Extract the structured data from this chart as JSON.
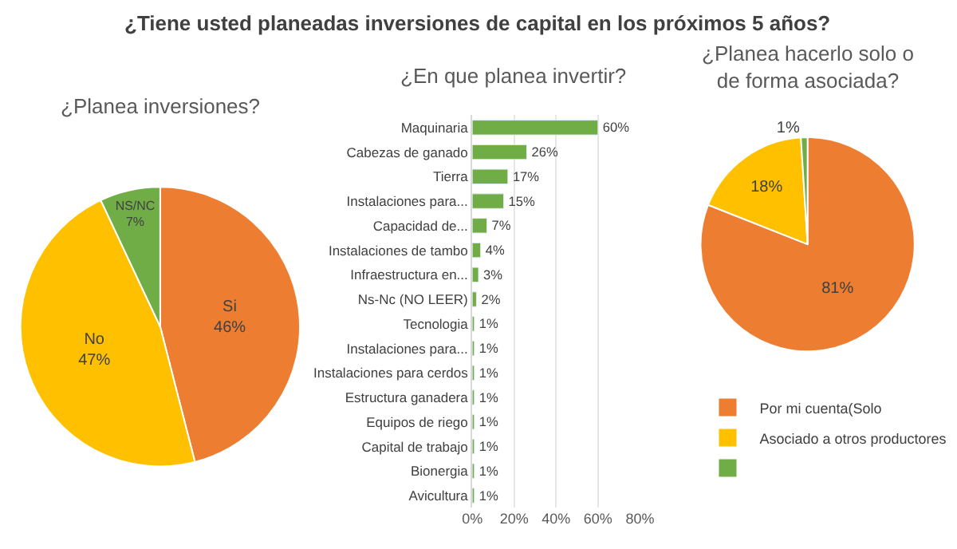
{
  "chart_data": [
    {
      "type": "pie",
      "title": "¿Tiene usted planeadas inversiones de capital en los próximos 5 años?",
      "subtitle": "¿Planea inversiones?",
      "categories": [
        "Si",
        "No",
        "NS/NC"
      ],
      "values": [
        46,
        47,
        7
      ],
      "value_labels": [
        "46%",
        "47%",
        "7%"
      ],
      "colors": [
        "#ed7d31",
        "#ffc000",
        "#70ad47"
      ],
      "legend": false
    },
    {
      "type": "bar",
      "orientation": "horizontal",
      "title": "¿En que planea invertir?",
      "categories": [
        "Maquinaria",
        "Cabezas de ganado",
        "Tierra",
        "Instalaciones para...",
        "Capacidad de...",
        "Instalaciones de tambo",
        "Infraestructura en...",
        "Ns-Nc (NO LEER)",
        "Tecnologia",
        "Instalaciones para...",
        "Instalaciones para cerdos",
        "Estructura ganadera",
        "Equipos de riego",
        "Capital de trabajo",
        "Bionergia",
        "Avicultura"
      ],
      "values": [
        60,
        26,
        17,
        15,
        7,
        4,
        3,
        2,
        1,
        1,
        1,
        1,
        1,
        1,
        1,
        1
      ],
      "value_labels": [
        "60%",
        "26%",
        "17%",
        "15%",
        "7%",
        "4%",
        "3%",
        "2%",
        "1%",
        "1%",
        "1%",
        "1%",
        "1%",
        "1%",
        "1%",
        "1%"
      ],
      "color": "#70ad47",
      "xlim": [
        0,
        80
      ],
      "xticks": [
        {
          "value": 0,
          "label": "0%"
        },
        {
          "value": 20,
          "label": "20%"
        },
        {
          "value": 40,
          "label": "40%"
        },
        {
          "value": 60,
          "label": "60%"
        },
        {
          "value": 80,
          "label": "80%"
        }
      ],
      "grid": "x",
      "legend": false
    },
    {
      "type": "pie",
      "title": "¿Planea hacerlo solo o de forma asociada?",
      "categories": [
        "Por mi cuenta(Solo",
        "Asociado a otros productores",
        null
      ],
      "values": [
        81,
        18,
        1
      ],
      "value_labels": [
        "81%",
        "18%",
        "1%"
      ],
      "colors": [
        "#ed7d31",
        "#ffc000",
        "#70ad47"
      ],
      "legend": "bottom"
    }
  ]
}
